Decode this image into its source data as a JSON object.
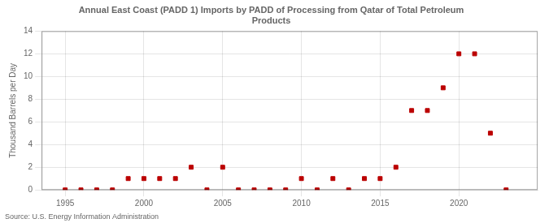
{
  "chart_data": {
    "type": "scatter",
    "title": "Annual East Coast (PADD 1) Imports by PADD of Processing from Qatar of Total Petroleum\nProducts",
    "ylabel": "Thousand Barrels per Day",
    "annotations": [
      "Source: U.S. Energy Information Administration"
    ],
    "x": [
      1995,
      1996,
      1997,
      1998,
      1999,
      2000,
      2001,
      2002,
      2003,
      2004,
      2005,
      2006,
      2007,
      2008,
      2009,
      2010,
      2011,
      2012,
      2013,
      2014,
      2015,
      2016,
      2017,
      2018,
      2019,
      2020,
      2021,
      2022,
      2023
    ],
    "values": [
      0,
      0,
      0,
      0,
      1,
      1,
      1,
      1,
      2,
      0,
      2,
      0,
      0,
      0,
      0,
      1,
      0,
      1,
      0,
      1,
      1,
      2,
      7,
      7,
      9,
      12,
      12,
      5,
      0
    ],
    "color": "#bb0000",
    "marker": "square",
    "xlim": [
      1993.5,
      2025
    ],
    "ylim": [
      0,
      14
    ],
    "xticks": [
      1995,
      2000,
      2005,
      2010,
      2015,
      2020
    ],
    "yticks": [
      0,
      2,
      4,
      6,
      8,
      10,
      12,
      14
    ],
    "grid": true
  }
}
